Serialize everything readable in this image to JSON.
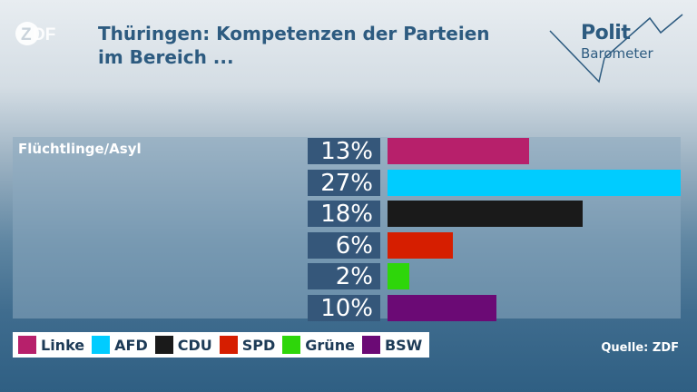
{
  "header": {
    "logo_text": "ZDF",
    "title_line1": "Thüringen: Kompetenzen der Parteien",
    "title_line2": "im Bereich ...",
    "brand_polit": "Polit",
    "brand_barometer": "Barometer"
  },
  "chart_data": {
    "type": "bar",
    "orientation": "horizontal",
    "category": "Flüchtlinge/Asyl",
    "series": [
      {
        "name": "Linke",
        "value": 13,
        "label": "13%",
        "color": "#b7206b"
      },
      {
        "name": "AFD",
        "value": 27,
        "label": "27%",
        "color": "#00ccff"
      },
      {
        "name": "CDU",
        "value": 18,
        "label": "18%",
        "color": "#1a1a1a"
      },
      {
        "name": "SPD",
        "value": 6,
        "label": "6%",
        "color": "#d61e00"
      },
      {
        "name": "Grüne",
        "value": 2,
        "label": "2%",
        "color": "#2ed60a"
      },
      {
        "name": "BSW",
        "value": 10,
        "label": "10%",
        "color": "#6b0a75"
      }
    ],
    "xlim": [
      0,
      27
    ],
    "legend_position": "bottom-left"
  },
  "footer": {
    "source": "Quelle: ZDF"
  }
}
